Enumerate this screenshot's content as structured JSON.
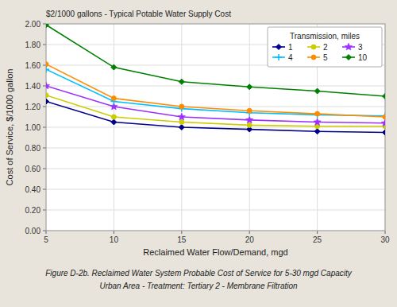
{
  "chart_data": {
    "type": "line",
    "x": [
      5,
      10,
      15,
      20,
      25,
      30
    ],
    "series": [
      {
        "name": "1",
        "color": "#00008B",
        "marker": "diamond",
        "line_style": "solid",
        "values": [
          1.25,
          1.05,
          1.0,
          0.98,
          0.96,
          0.95
        ]
      },
      {
        "name": "2",
        "color": "#CCCC00",
        "marker": "circle",
        "line_style": "solid",
        "values": [
          1.31,
          1.1,
          1.05,
          1.02,
          1.01,
          1.01
        ]
      },
      {
        "name": "3",
        "color": "#9B30FF",
        "marker": "star",
        "line_style": "solid",
        "values": [
          1.4,
          1.2,
          1.1,
          1.07,
          1.05,
          1.04
        ]
      },
      {
        "name": "4",
        "color": "#00BFFF",
        "marker": "plus",
        "line_style": "solid",
        "values": [
          1.56,
          1.25,
          1.18,
          1.14,
          1.12,
          1.11
        ]
      },
      {
        "name": "5",
        "color": "#FF8C00",
        "marker": "circle",
        "line_style": "solid",
        "values": [
          1.61,
          1.28,
          1.2,
          1.16,
          1.13,
          1.1
        ]
      },
      {
        "name": "10",
        "color": "#008000",
        "marker": "diamond",
        "line_style": "solid",
        "values": [
          1.99,
          1.58,
          1.44,
          1.39,
          1.35,
          1.3
        ]
      }
    ],
    "annotation": "$2/1000 gallons - Typical Potable Water Supply Cost",
    "legend_title": "Transmission, miles",
    "xlabel": "Reclaimed Water Flow/Demand, mgd",
    "ylabel": "Cost of Service, $/1000 gallon",
    "caption": [
      "Figure D-2b. Reclaimed Water System Probable Cost of Service for 5-30 mgd Capacity",
      "Urban Area - Treatment: Tertiary 2 - Membrane Filtration"
    ],
    "xlim": [
      5,
      30
    ],
    "ylim": [
      0.0,
      2.0
    ],
    "xticks": [
      5,
      10,
      15,
      20,
      25,
      30
    ],
    "yticks": [
      {
        "value": 0.0,
        "label": "0.00"
      },
      {
        "value": 0.2,
        "label": "0.20"
      },
      {
        "value": 0.4,
        "label": "0.40"
      },
      {
        "value": 0.6,
        "label": "0.60"
      },
      {
        "value": 0.8,
        "label": "0.80"
      },
      {
        "value": 1.0,
        "label": "1.00"
      },
      {
        "value": 1.2,
        "label": "1.20"
      },
      {
        "value": 1.4,
        "label": "1.40"
      },
      {
        "value": 1.6,
        "label": "1.60"
      },
      {
        "value": 1.8,
        "label": "1.80"
      },
      {
        "value": 2.0,
        "label": "2.00"
      }
    ],
    "grid": true,
    "legend": "upper right"
  }
}
